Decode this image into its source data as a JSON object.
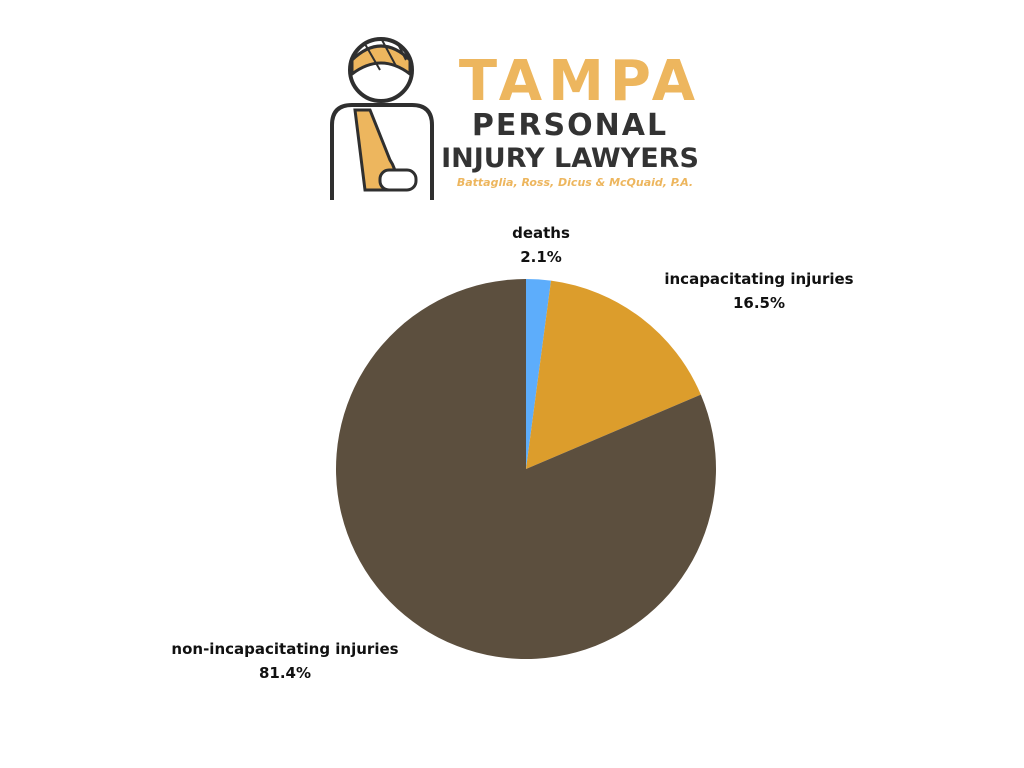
{
  "logo": {
    "line1": "TAMPA",
    "line2": "PERSONAL",
    "line3": "INJURY LAWYERS",
    "tagline": "Battaglia, Ross, Dicus & McQuaid, P.A.",
    "colors": {
      "accent": "#EDB65E",
      "dark": "#333333"
    }
  },
  "chart_data": {
    "type": "pie",
    "title": "",
    "start_angle_deg": 0,
    "direction": "clockwise",
    "legend": "none",
    "slices": [
      {
        "label": "deaths",
        "value": 2.1,
        "display": "2.1%",
        "color": "#5DADFB"
      },
      {
        "label": "incapacitating injuries",
        "value": 16.5,
        "display": "16.5%",
        "color": "#DC9D2C"
      },
      {
        "label": "non-incapacitating injuries",
        "value": 81.4,
        "display": "81.4%",
        "color": "#5C4F3E"
      }
    ]
  }
}
